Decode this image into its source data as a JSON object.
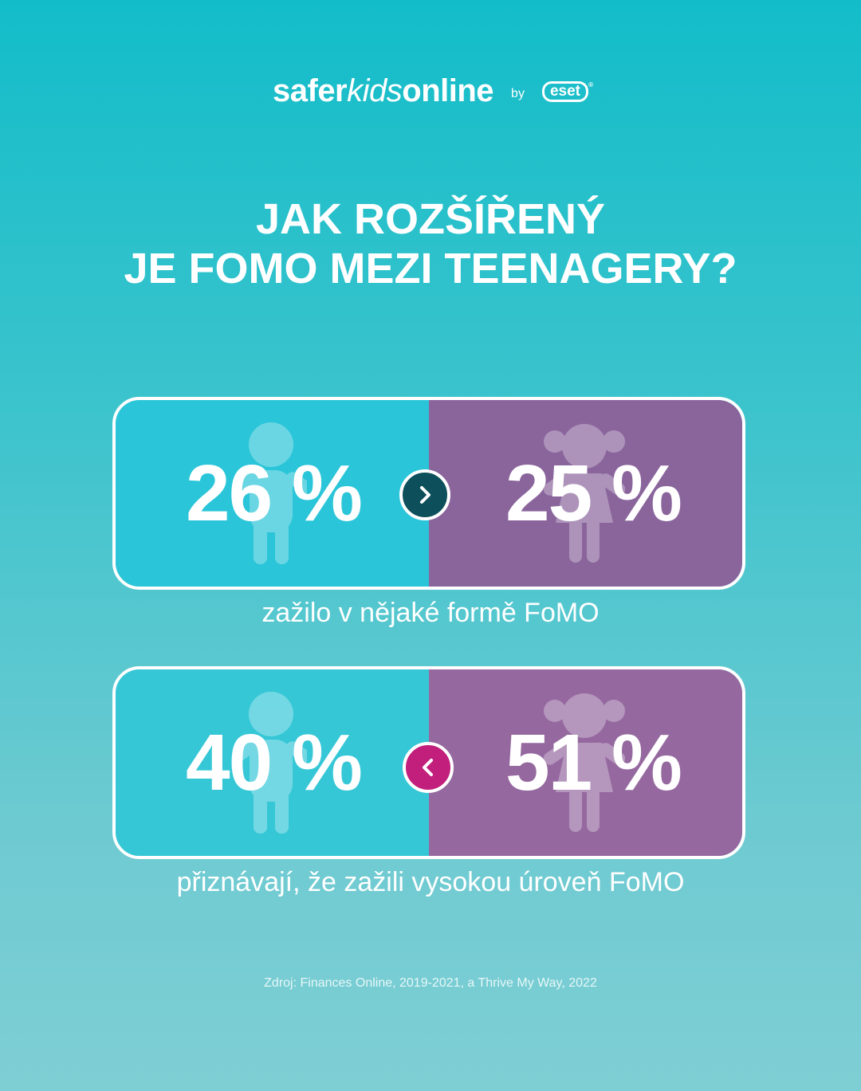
{
  "brand": {
    "name_part1": "safer",
    "name_part2": "kids",
    "name_part3": "online",
    "by": "by",
    "partner": "eset",
    "partner_mark": "®"
  },
  "title": {
    "line1": "JAK ROZŠÍŘENÝ",
    "line2": "JE FOMO MEZI TEENAGERY?"
  },
  "stats": [
    {
      "boys": "26 %",
      "girls": "25 %",
      "comparison_icon": "chevron-right-icon",
      "caption": "zažilo v nějaké formě FoMO"
    },
    {
      "boys": "40 %",
      "girls": "51 %",
      "comparison_icon": "chevron-left-icon",
      "caption": "přiznávají, že zažili vysokou úroveň FoMO"
    }
  ],
  "source": "Zdroj: Finances Online, 2019-2021, a Thrive My Way, 2022",
  "colors": {
    "boy_panel": "#2ac5d8",
    "girl_panel": "#8a659c",
    "arrow_dark": "#0d4f5a",
    "arrow_magenta": "#c21f7d"
  }
}
